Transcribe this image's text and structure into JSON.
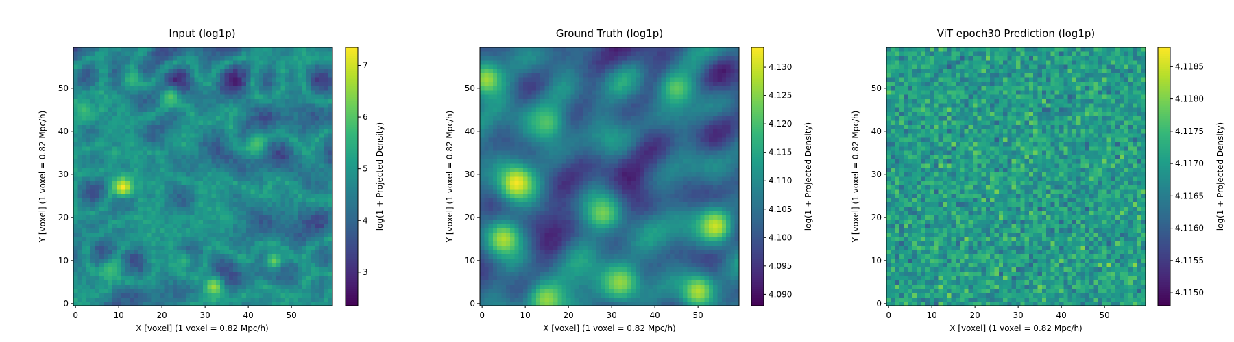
{
  "colormap": {
    "name": "viridis",
    "stops": [
      "#440154",
      "#482878",
      "#3e4989",
      "#31688e",
      "#26828e",
      "#1f9e89",
      "#35b779",
      "#6ece58",
      "#b5de2b",
      "#fde725"
    ]
  },
  "chart_data": [
    {
      "type": "heatmap",
      "title": "Input (log1p)",
      "xlabel": "X [voxel] (1 voxel = 0.82 Mpc/h)",
      "ylabel": "Y [voxel] (1 voxel = 0.82 Mpc/h)",
      "grid_size": [
        60,
        60
      ],
      "xlim": [
        0,
        59
      ],
      "ylim": [
        0,
        59
      ],
      "x_ticks": [
        0,
        10,
        20,
        30,
        40,
        50
      ],
      "y_ticks": [
        0,
        10,
        20,
        30,
        40,
        50
      ],
      "color_range": [
        2.35,
        7.35
      ],
      "colorbar": {
        "label": "log(1 + Projected Density)",
        "ticks": [
          "3",
          "4",
          "5",
          "6",
          "7"
        ]
      },
      "pattern": "filamentary",
      "peaks": [
        {
          "x": 11,
          "y": 27,
          "value": 7.3
        },
        {
          "x": 32,
          "y": 4,
          "value": 6.6
        },
        {
          "x": 46,
          "y": 10,
          "value": 6.2
        },
        {
          "x": 22,
          "y": 48,
          "value": 6.0
        },
        {
          "x": 42,
          "y": 37,
          "value": 5.9
        },
        {
          "x": 2,
          "y": 45,
          "value": 5.8
        },
        {
          "x": 13,
          "y": 52,
          "value": 5.7
        },
        {
          "x": 8,
          "y": 8,
          "value": 5.8
        },
        {
          "x": 25,
          "y": 10,
          "value": 5.6
        }
      ]
    },
    {
      "type": "heatmap",
      "title": "Ground Truth (log1p)",
      "xlabel": "X [voxel] (1 voxel = 0.82 Mpc/h)",
      "ylabel": "Y [voxel] (1 voxel = 0.82 Mpc/h)",
      "grid_size": [
        60,
        60
      ],
      "xlim": [
        0,
        59
      ],
      "ylim": [
        0,
        59
      ],
      "x_ticks": [
        0,
        10,
        20,
        30,
        40,
        50
      ],
      "y_ticks": [
        0,
        10,
        20,
        30,
        40,
        50
      ],
      "color_range": [
        4.088,
        4.1335
      ],
      "colorbar": {
        "label": "log(1 + Projected Density)",
        "ticks": [
          "4.090",
          "4.095",
          "4.100",
          "4.105",
          "4.110",
          "4.115",
          "4.120",
          "4.125",
          "4.130"
        ]
      },
      "pattern": "smooth",
      "peaks": [
        {
          "x": 8,
          "y": 28,
          "value": 4.133
        },
        {
          "x": 5,
          "y": 15,
          "value": 4.128
        },
        {
          "x": 54,
          "y": 18,
          "value": 4.13
        },
        {
          "x": 32,
          "y": 5,
          "value": 4.126
        },
        {
          "x": 1,
          "y": 52,
          "value": 4.127
        },
        {
          "x": 50,
          "y": 3,
          "value": 4.128
        },
        {
          "x": 28,
          "y": 21,
          "value": 4.124
        },
        {
          "x": 45,
          "y": 50,
          "value": 4.122
        },
        {
          "x": 15,
          "y": 42,
          "value": 4.121
        },
        {
          "x": 15,
          "y": 1,
          "value": 4.126
        }
      ]
    },
    {
      "type": "heatmap",
      "title": "ViT epoch30 Prediction (log1p)",
      "xlabel": "X [voxel] (1 voxel = 0.82 Mpc/h)",
      "ylabel": "Y [voxel] (1 voxel = 0.82 Mpc/h)",
      "grid_size": [
        60,
        60
      ],
      "xlim": [
        0,
        59
      ],
      "ylim": [
        0,
        59
      ],
      "x_ticks": [
        0,
        10,
        20,
        30,
        40,
        50
      ],
      "y_ticks": [
        0,
        10,
        20,
        30,
        40,
        50
      ],
      "color_range": [
        4.1148,
        4.1188
      ],
      "colorbar": {
        "label": "log(1 + Projected Density)",
        "ticks": [
          "4.1150",
          "4.1155",
          "4.1160",
          "4.1165",
          "4.1170",
          "4.1175",
          "4.1180",
          "4.1185"
        ]
      },
      "pattern": "noise",
      "peaks": []
    }
  ]
}
